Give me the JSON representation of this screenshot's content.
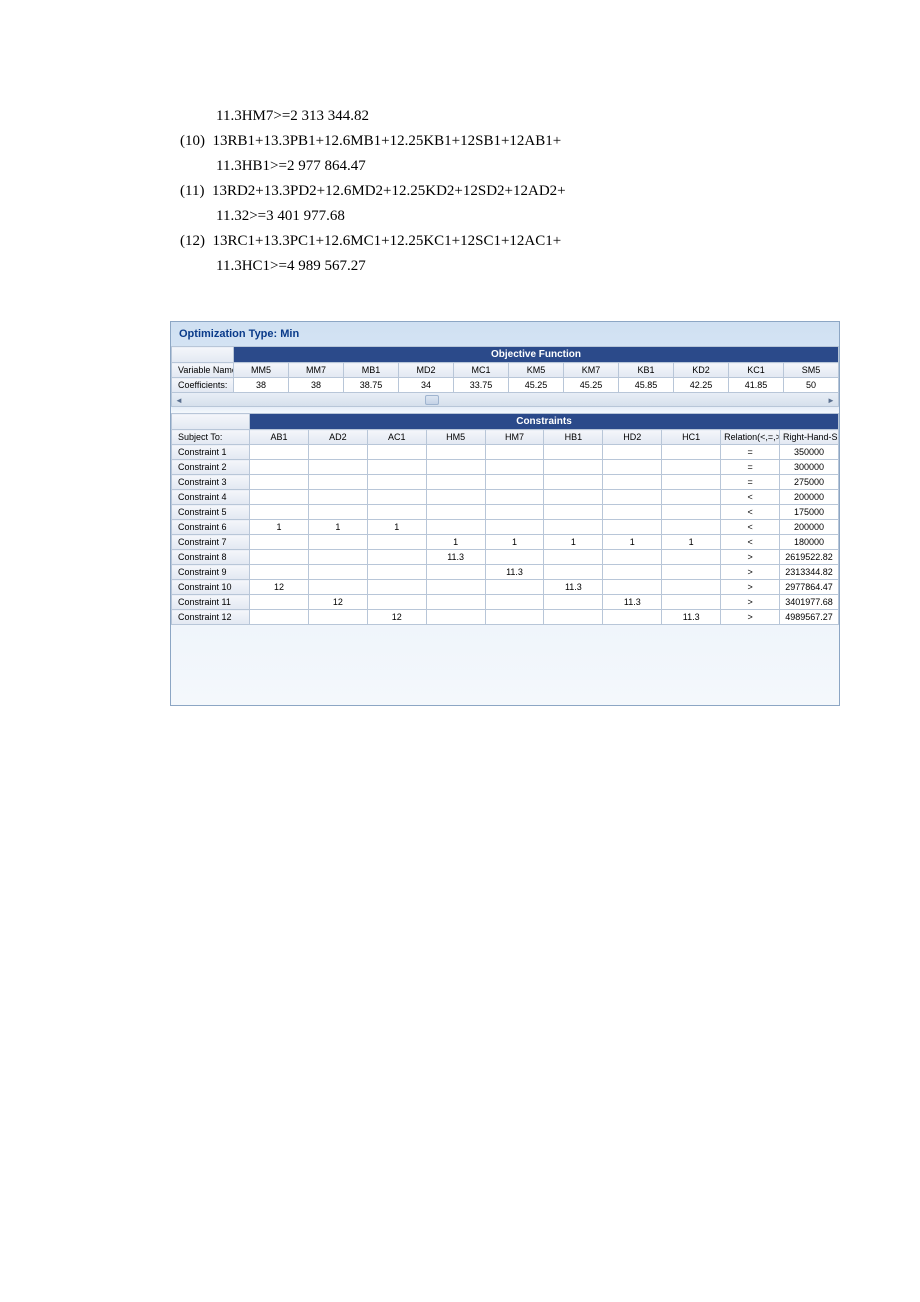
{
  "equations": [
    {
      "num": "",
      "text": "11.3HM7>=2 313 344.82",
      "indent": true
    },
    {
      "num": "(10)",
      "text": "13RB1+13.3PB1+12.6MB1+12.25KB1+12SB1+12AB1+",
      "indent": false
    },
    {
      "num": "",
      "text": "11.3HB1>=2 977 864.47",
      "indent": true
    },
    {
      "num": "(11)",
      "text": "13RD2+13.3PD2+12.6MD2+12.25KD2+12SD2+12AD2+",
      "indent": false
    },
    {
      "num": "",
      "text": "11.32>=3 401 977.68",
      "indent": true
    },
    {
      "num": "(12)",
      "text": "13RC1+13.3PC1+12.6MC1+12.25KC1+12SC1+12AC1+",
      "indent": false
    },
    {
      "num": "",
      "text": "11.3HC1>=4 989 567.27",
      "indent": true
    }
  ],
  "opt_title": "Optimization Type:  Min",
  "objective": {
    "band": "Objective Function",
    "row_headers": [
      "Variable Names:",
      "Coefficients:"
    ],
    "columns": [
      "MM5",
      "MM7",
      "MB1",
      "MD2",
      "MC1",
      "KM5",
      "KM7",
      "KB1",
      "KD2",
      "KC1",
      "SM5"
    ],
    "coeffs": [
      "38",
      "38",
      "38.75",
      "34",
      "33.75",
      "45.25",
      "45.25",
      "45.85",
      "42.25",
      "41.85",
      "50"
    ]
  },
  "constraints": {
    "band": "Constraints",
    "subject_to": "Subject To:",
    "columns": [
      "AB1",
      "AD2",
      "AC1",
      "HM5",
      "HM7",
      "HB1",
      "HD2",
      "HC1",
      "Relation(<,=,>)",
      "Right-Hand-Side"
    ],
    "rows": [
      {
        "label": "Constraint 1",
        "cells": [
          "",
          "",
          "",
          "",
          "",
          "",
          "",
          "",
          "=",
          "350000"
        ]
      },
      {
        "label": "Constraint 2",
        "cells": [
          "",
          "",
          "",
          "",
          "",
          "",
          "",
          "",
          "=",
          "300000"
        ]
      },
      {
        "label": "Constraint 3",
        "cells": [
          "",
          "",
          "",
          "",
          "",
          "",
          "",
          "",
          "=",
          "275000"
        ]
      },
      {
        "label": "Constraint 4",
        "cells": [
          "",
          "",
          "",
          "",
          "",
          "",
          "",
          "",
          "<",
          "200000"
        ]
      },
      {
        "label": "Constraint 5",
        "cells": [
          "",
          "",
          "",
          "",
          "",
          "",
          "",
          "",
          "<",
          "175000"
        ]
      },
      {
        "label": "Constraint 6",
        "cells": [
          "1",
          "1",
          "1",
          "",
          "",
          "",
          "",
          "",
          "<",
          "200000"
        ]
      },
      {
        "label": "Constraint 7",
        "cells": [
          "",
          "",
          "",
          "1",
          "1",
          "1",
          "1",
          "1",
          "<",
          "180000"
        ]
      },
      {
        "label": "Constraint 8",
        "cells": [
          "",
          "",
          "",
          "11.3",
          "",
          "",
          "",
          "",
          ">",
          "2619522.82"
        ]
      },
      {
        "label": "Constraint 9",
        "cells": [
          "",
          "",
          "",
          "",
          "11.3",
          "",
          "",
          "",
          ">",
          "2313344.82"
        ]
      },
      {
        "label": "Constraint 10",
        "cells": [
          "12",
          "",
          "",
          "",
          "",
          "11.3",
          "",
          "",
          ">",
          "2977864.47"
        ]
      },
      {
        "label": "Constraint 11",
        "cells": [
          "",
          "12",
          "",
          "",
          "",
          "",
          "11.3",
          "",
          ">",
          "3401977.68"
        ]
      },
      {
        "label": "Constraint 12",
        "cells": [
          "",
          "",
          "12",
          "",
          "",
          "",
          "",
          "11.3",
          ">",
          "4989567.27"
        ]
      }
    ]
  }
}
